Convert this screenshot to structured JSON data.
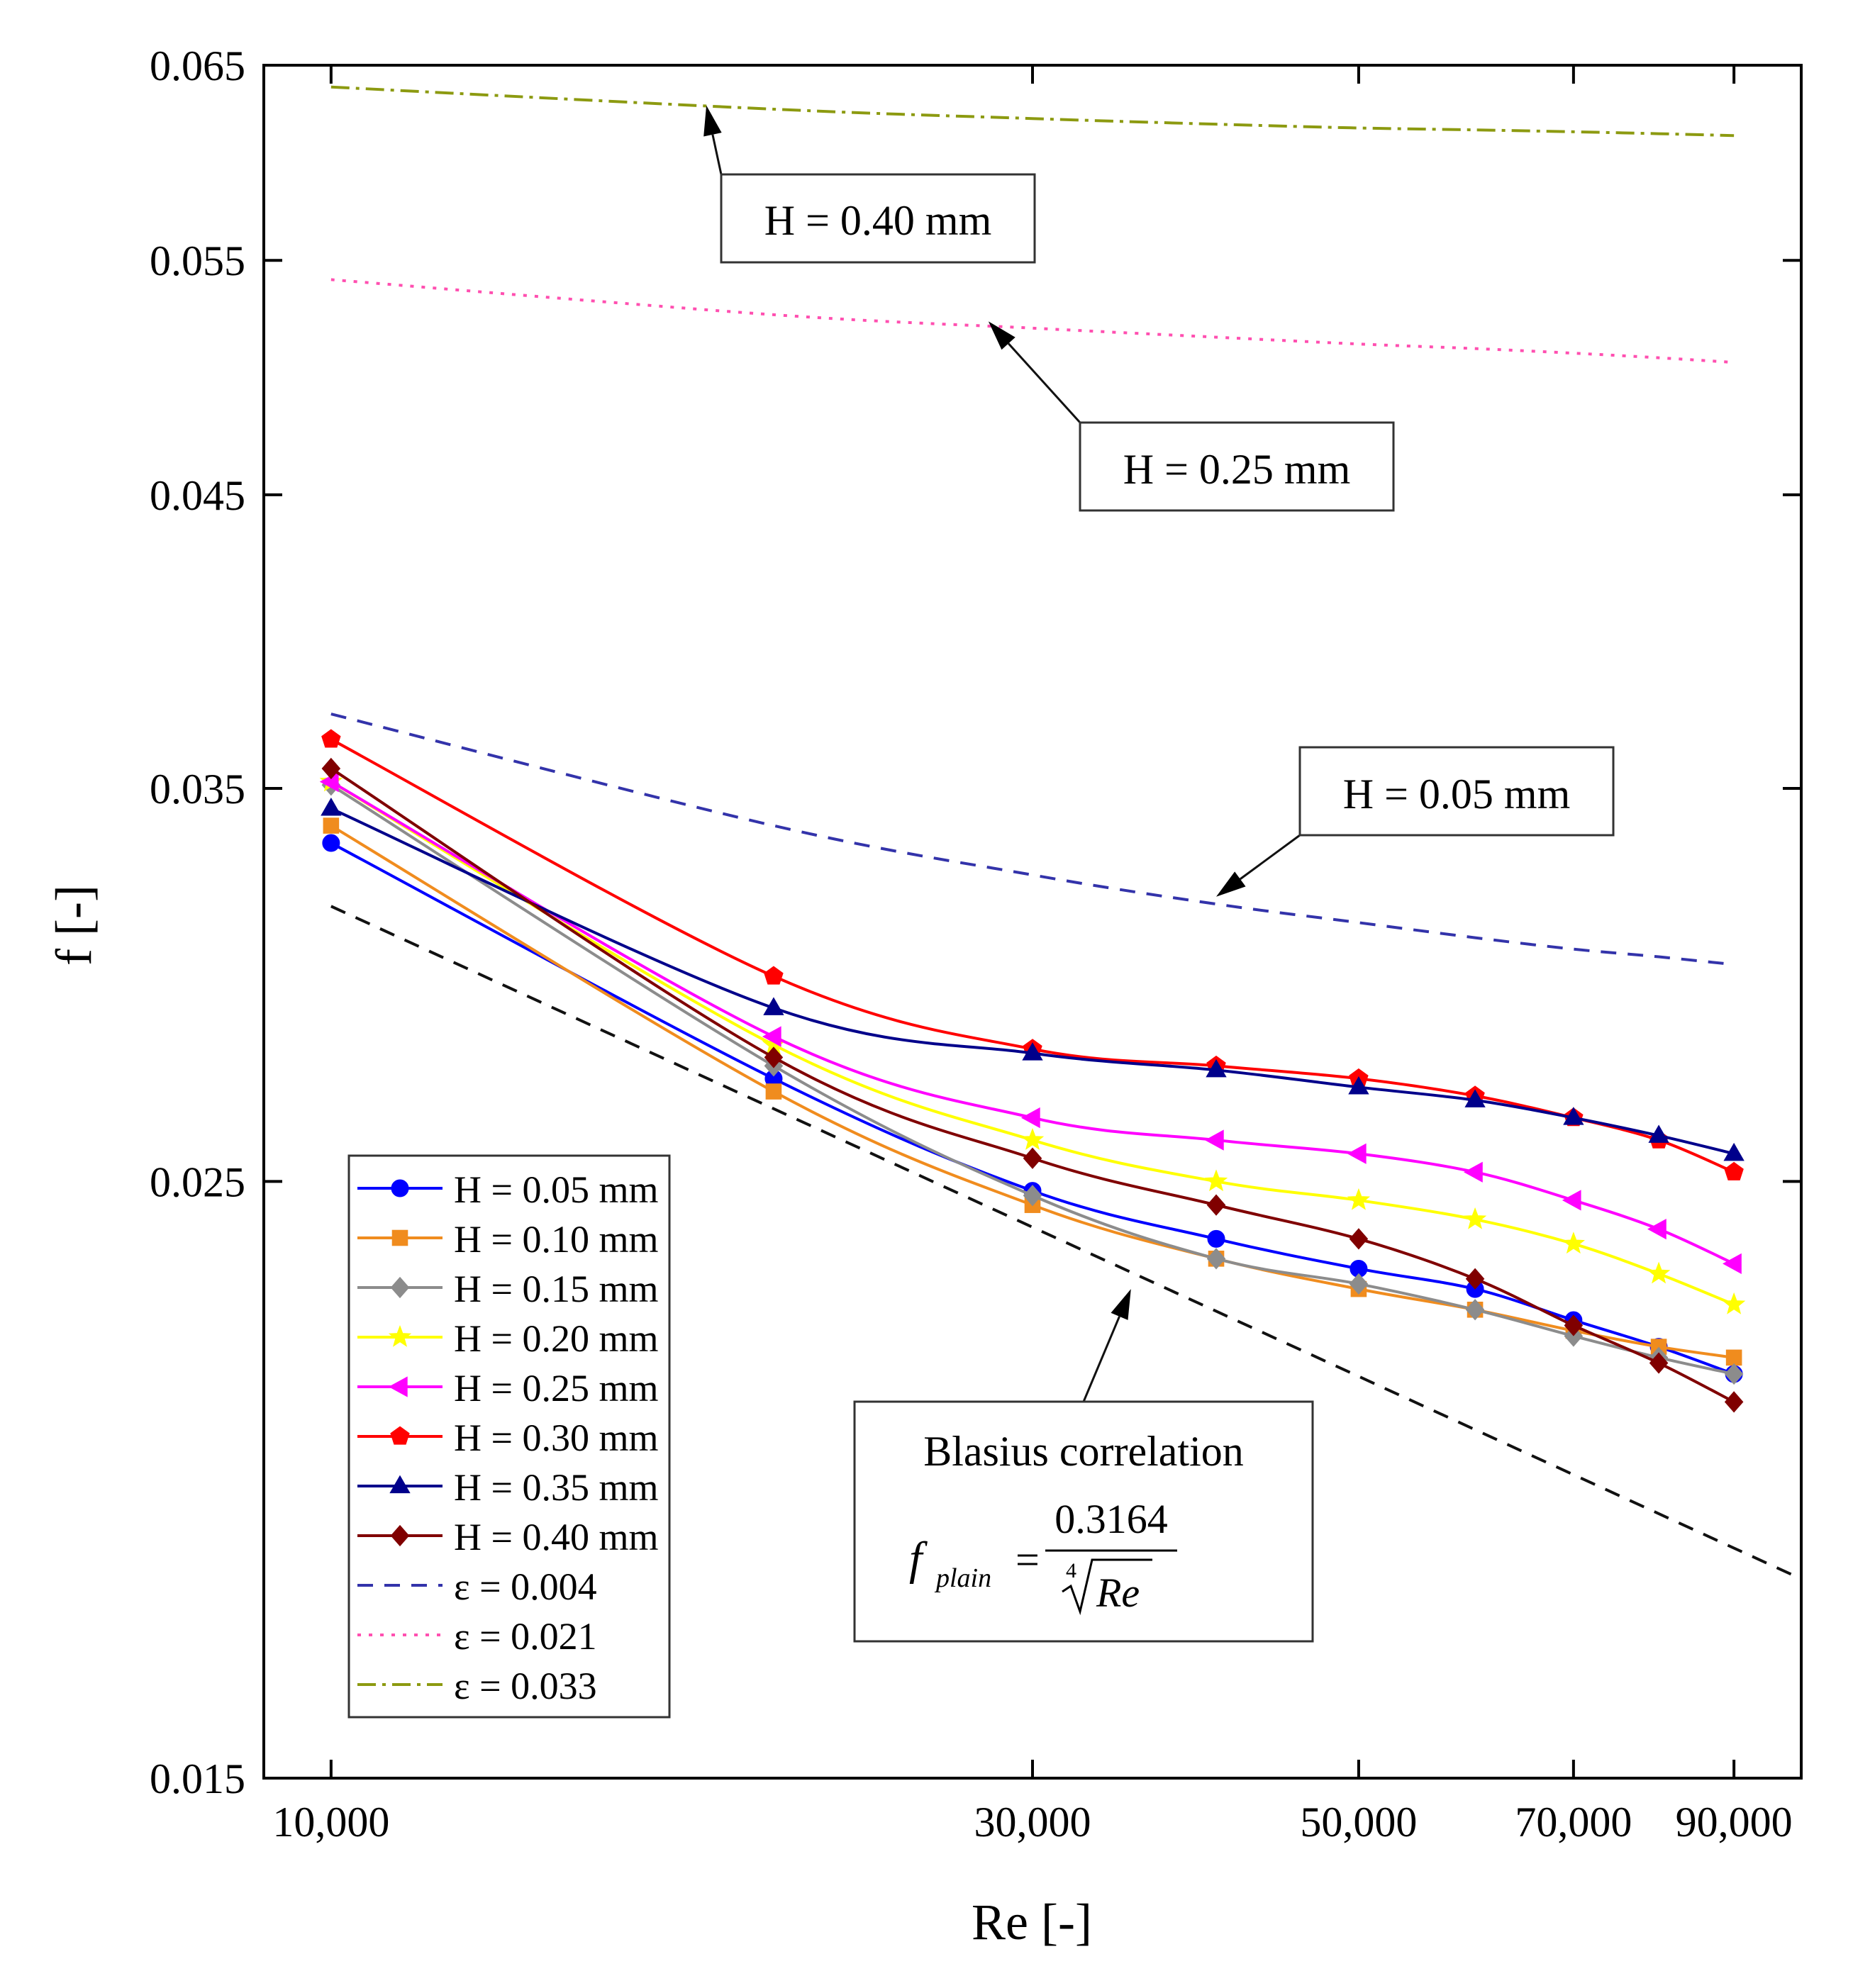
{
  "chart_data": {
    "type": "line",
    "xscale": "log",
    "yscale": "log",
    "xlabel": "Re [-]",
    "ylabel": "f [-]",
    "xlim": [
      9000,
      100000
    ],
    "ylim": [
      0.015,
      0.065
    ],
    "xticks": [
      10000,
      30000,
      50000,
      70000,
      90000
    ],
    "xtick_labels": [
      "10,000",
      "30,000",
      "50,000",
      "70,000",
      "90,000"
    ],
    "yticks": [
      0.015,
      0.025,
      0.035,
      0.045,
      0.055,
      0.065
    ],
    "ytick_labels": [
      "0.015",
      "0.025",
      "0.035",
      "0.045",
      "0.055",
      "0.065"
    ],
    "x": [
      10000,
      20000,
      30000,
      40000,
      50000,
      60000,
      70000,
      80000,
      90000
    ],
    "series": [
      {
        "name": "H = 0.05 mm",
        "color": "#0000ff",
        "marker": "circle",
        "values": [
          0.0334,
          0.0273,
          0.0248,
          0.0238,
          0.0232,
          0.0228,
          0.0222,
          0.0217,
          0.0212
        ]
      },
      {
        "name": "H = 0.10 mm",
        "color": "#f08c1e",
        "marker": "square",
        "values": [
          0.0339,
          0.027,
          0.0245,
          0.0234,
          0.0228,
          0.0224,
          0.022,
          0.0217,
          0.0215
        ]
      },
      {
        "name": "H = 0.15 mm",
        "color": "#8c8c8c",
        "marker": "diamond",
        "values": [
          0.0351,
          0.0276,
          0.0247,
          0.0234,
          0.0229,
          0.0224,
          0.0219,
          0.0215,
          0.0212
        ]
      },
      {
        "name": "H = 0.20 mm",
        "color": "#ffff00",
        "marker": "star",
        "values": [
          0.0352,
          0.0281,
          0.0259,
          0.025,
          0.0246,
          0.0242,
          0.0237,
          0.0231,
          0.0225
        ]
      },
      {
        "name": "H = 0.25 mm",
        "color": "#ff00ff",
        "marker": "triangle-left",
        "values": [
          0.0352,
          0.0283,
          0.0264,
          0.0259,
          0.0256,
          0.0252,
          0.0246,
          0.024,
          0.0233
        ]
      },
      {
        "name": "H = 0.30 mm",
        "color": "#ff0000",
        "marker": "pentagon",
        "values": [
          0.0365,
          0.0298,
          0.028,
          0.0276,
          0.0273,
          0.0269,
          0.0264,
          0.0259,
          0.0252
        ]
      },
      {
        "name": "H = 0.35 mm",
        "color": "#00008b",
        "marker": "triangle-up",
        "values": [
          0.0344,
          0.029,
          0.0279,
          0.0275,
          0.0271,
          0.0268,
          0.0264,
          0.026,
          0.0256
        ]
      },
      {
        "name": "H = 0.40 mm",
        "color": "#800000",
        "marker": "diamond",
        "values": [
          0.0356,
          0.0278,
          0.0255,
          0.0245,
          0.0238,
          0.023,
          0.0221,
          0.0214,
          0.0207
        ]
      }
    ],
    "curves": [
      {
        "name": "ε = 0.004",
        "color": "#3333aa",
        "dash": "22,16",
        "x": [
          10000,
          20000,
          30000,
          40000,
          50000,
          60000,
          70000,
          80000,
          90000
        ],
        "values": [
          0.0373,
          0.0339,
          0.0325,
          0.0317,
          0.0312,
          0.0308,
          0.0305,
          0.0303,
          0.0301
        ]
      },
      {
        "name": "ε = 0.021",
        "color": "#ff4fb0",
        "dash": "5,11",
        "x": [
          10000,
          20000,
          30000,
          40000,
          50000,
          60000,
          70000,
          80000,
          90000
        ],
        "values": [
          0.0541,
          0.0525,
          0.0519,
          0.0515,
          0.0512,
          0.051,
          0.0508,
          0.0506,
          0.0504
        ]
      },
      {
        "name": "ε = 0.033",
        "color": "#8c9a10",
        "dash": "26,9,5,9",
        "x": [
          10000,
          20000,
          30000,
          40000,
          50000,
          60000,
          70000,
          80000,
          90000
        ],
        "values": [
          0.0638,
          0.0626,
          0.0621,
          0.0618,
          0.0616,
          0.0615,
          0.0614,
          0.0613,
          0.0612
        ]
      },
      {
        "name": "Blasius",
        "color": "#111111",
        "dash": "22,16",
        "x": [
          10000,
          100000
        ],
        "values": [
          0.03164,
          0.01779
        ]
      }
    ],
    "annotations": [
      {
        "text": "H = 0.40 mm",
        "target": [
          18000,
          0.0628
        ]
      },
      {
        "text": "H = 0.25 mm",
        "target": [
          28000,
          0.0522
        ]
      },
      {
        "text": "H = 0.05 mm",
        "target": [
          40000,
          0.0319
        ]
      }
    ],
    "blasius_box": {
      "title": "Blasius correlation",
      "lhs": "f",
      "subscript": "plain",
      "equals": "=",
      "numerator": "0.3164",
      "root_index": "4",
      "radicand": "Re",
      "target": [
        35000,
        0.0228
      ]
    },
    "legend_position": "bottom-left"
  }
}
